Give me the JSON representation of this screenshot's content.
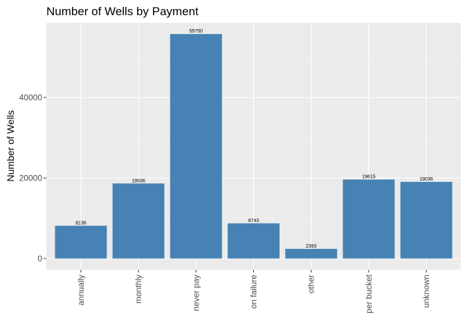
{
  "chart_data": {
    "type": "bar",
    "title": "Number of Wells by Payment",
    "xlabel": "",
    "ylabel": "Number of Wells",
    "categories": [
      "annually",
      "monthly",
      "never pay",
      "on failure",
      "other",
      "per bucket",
      "unknown"
    ],
    "values": [
      8136,
      18636,
      55750,
      8743,
      2393,
      19615,
      19036
    ],
    "data_labels": [
      "8136",
      "18636",
      "55750",
      "8743",
      "2393",
      "19615",
      "19036"
    ],
    "y_ticks": [
      0,
      20000,
      40000
    ],
    "y_tick_labels": [
      "0",
      "20000",
      "40000"
    ],
    "ylim": [
      -2787.5,
      58537.5
    ],
    "grid": true,
    "colors": {
      "bar": "#4682b4",
      "panel_background": "#ebebeb",
      "grid_major": "#ffffff",
      "grid_minor": "#f5f5f5",
      "tick_text": "#4d4d4d",
      "tick_mark": "#333333"
    }
  }
}
